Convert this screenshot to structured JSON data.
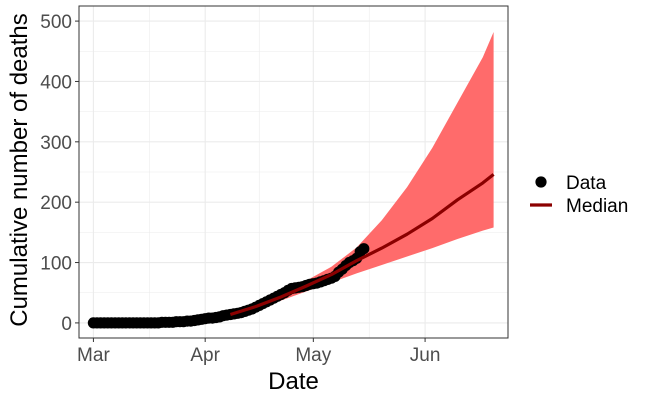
{
  "chart_data": {
    "type": "line",
    "xlabel": "Date",
    "ylabel": "Cumulative number of deaths",
    "xlim": [
      "2020-02-26",
      "2020-06-24"
    ],
    "ylim": [
      -25,
      525
    ],
    "x_ticks": [
      {
        "date": "2020-03-01",
        "label": "Mar"
      },
      {
        "date": "2020-04-01",
        "label": "Apr"
      },
      {
        "date": "2020-05-01",
        "label": "May"
      },
      {
        "date": "2020-06-01",
        "label": "Jun"
      }
    ],
    "y_ticks": [
      0,
      100,
      200,
      300,
      400,
      500
    ],
    "grid": true,
    "legend_position": "right",
    "legend": [
      {
        "label": "Data",
        "kind": "point"
      },
      {
        "label": "Median",
        "kind": "line"
      }
    ],
    "colors": {
      "data_points": "#000000",
      "median": "#8b0000",
      "band": "#ff6b6b",
      "grid": "#ebebeb",
      "panel_border": "#333333"
    },
    "series": [
      {
        "name": "Data",
        "kind": "points",
        "x": [
          "2020-03-01",
          "2020-03-02",
          "2020-03-03",
          "2020-03-04",
          "2020-03-05",
          "2020-03-06",
          "2020-03-07",
          "2020-03-08",
          "2020-03-09",
          "2020-03-10",
          "2020-03-11",
          "2020-03-12",
          "2020-03-13",
          "2020-03-14",
          "2020-03-15",
          "2020-03-16",
          "2020-03-17",
          "2020-03-18",
          "2020-03-19",
          "2020-03-20",
          "2020-03-21",
          "2020-03-22",
          "2020-03-23",
          "2020-03-24",
          "2020-03-25",
          "2020-03-26",
          "2020-03-27",
          "2020-03-28",
          "2020-03-29",
          "2020-03-30",
          "2020-03-31",
          "2020-04-01",
          "2020-04-02",
          "2020-04-03",
          "2020-04-04",
          "2020-04-05",
          "2020-04-06",
          "2020-04-07",
          "2020-04-08",
          "2020-04-09",
          "2020-04-10",
          "2020-04-11",
          "2020-04-12",
          "2020-04-13",
          "2020-04-14",
          "2020-04-15",
          "2020-04-16",
          "2020-04-17",
          "2020-04-18",
          "2020-04-19",
          "2020-04-20",
          "2020-04-21",
          "2020-04-22",
          "2020-04-23",
          "2020-04-24",
          "2020-04-25",
          "2020-04-26",
          "2020-04-27",
          "2020-04-28",
          "2020-04-29",
          "2020-04-30",
          "2020-05-01",
          "2020-05-02",
          "2020-05-03",
          "2020-05-04",
          "2020-05-05",
          "2020-05-06",
          "2020-05-07",
          "2020-05-08",
          "2020-05-09",
          "2020-05-10",
          "2020-05-11",
          "2020-05-12",
          "2020-05-13",
          "2020-05-14",
          "2020-05-15"
        ],
        "y": [
          0,
          0,
          0,
          0,
          0,
          0,
          0,
          0,
          0,
          0,
          0,
          0,
          0,
          0,
          0,
          0,
          0,
          0,
          0,
          1,
          1,
          1,
          1,
          2,
          2,
          2,
          3,
          3,
          4,
          5,
          6,
          7,
          8,
          8,
          9,
          10,
          12,
          13,
          14,
          15,
          16,
          17,
          19,
          21,
          23,
          26,
          29,
          32,
          35,
          38,
          41,
          44,
          47,
          50,
          54,
          57,
          58,
          59,
          60,
          62,
          64,
          65,
          66,
          68,
          70,
          72,
          74,
          77,
          84,
          89,
          95,
          100,
          103,
          107,
          118,
          123
        ]
      },
      {
        "name": "Median",
        "kind": "line",
        "x": [
          "2020-04-08",
          "2020-04-15",
          "2020-04-22",
          "2020-04-29",
          "2020-05-06",
          "2020-05-13",
          "2020-05-20",
          "2020-05-27",
          "2020-06-03",
          "2020-06-10",
          "2020-06-17",
          "2020-06-20"
        ],
        "y": [
          14,
          27,
          43,
          61,
          80,
          103,
          124,
          147,
          173,
          204,
          232,
          246
        ]
      },
      {
        "kind": "band",
        "x": [
          "2020-04-08",
          "2020-04-15",
          "2020-04-22",
          "2020-04-29",
          "2020-05-06",
          "2020-05-13",
          "2020-05-20",
          "2020-05-27",
          "2020-06-03",
          "2020-06-10",
          "2020-06-17",
          "2020-06-20"
        ],
        "lower": [
          12,
          23,
          37,
          52,
          67,
          82,
          96,
          110,
          124,
          139,
          153,
          158
        ],
        "upper": [
          17,
          32,
          50,
          70,
          93,
          125,
          170,
          225,
          290,
          365,
          440,
          482
        ]
      }
    ]
  }
}
